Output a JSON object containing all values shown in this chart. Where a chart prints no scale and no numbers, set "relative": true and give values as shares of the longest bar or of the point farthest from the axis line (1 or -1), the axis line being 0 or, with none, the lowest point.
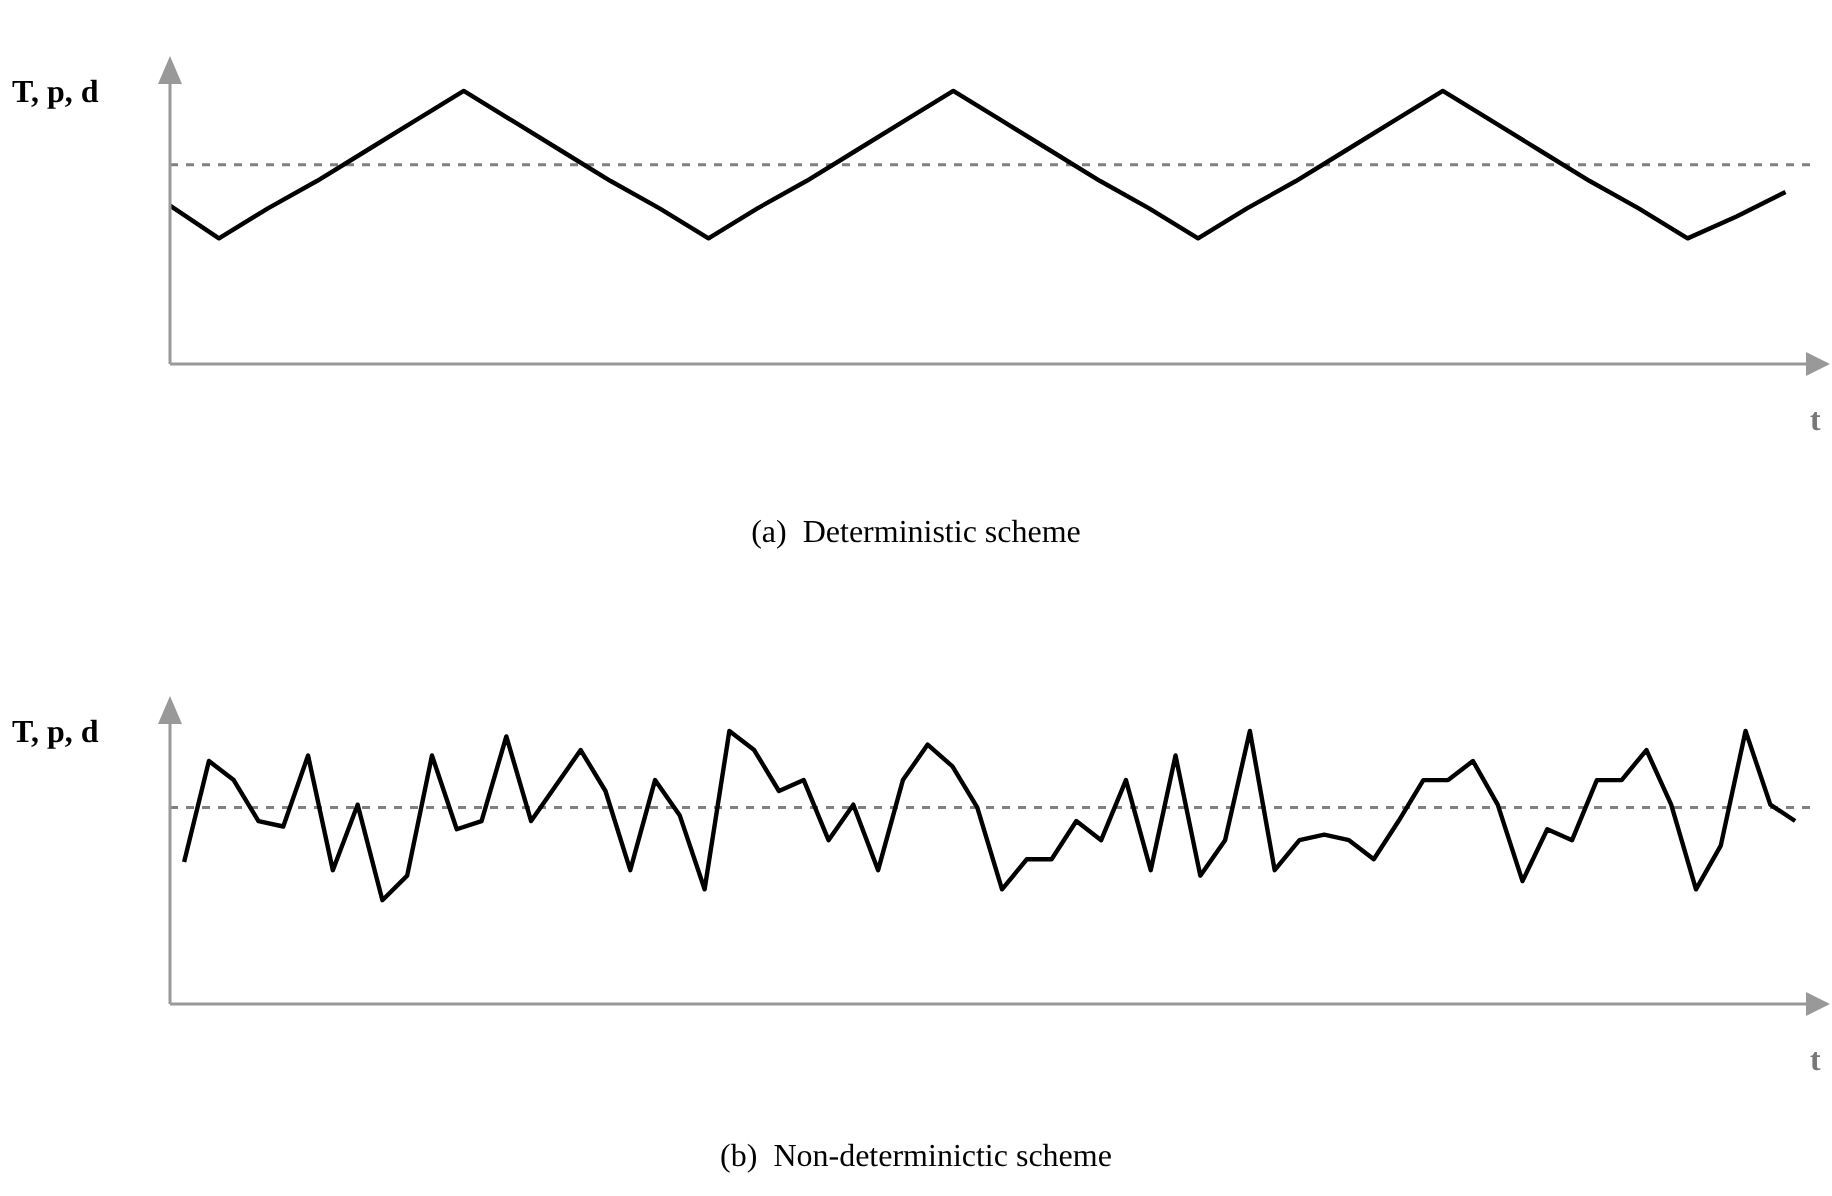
{
  "chart_data": [
    {
      "type": "line",
      "ylabel": "T, p, d",
      "xlabel": "t",
      "annotations": [
        "(a)  Deterministic scheme"
      ],
      "relative": true,
      "categories": [
        null,
        null,
        null,
        null,
        null,
        null,
        null,
        null,
        null,
        null,
        null,
        null,
        null,
        null,
        null,
        null,
        null,
        null,
        null,
        null,
        null,
        null,
        null,
        null,
        null,
        null,
        null,
        null,
        null,
        null,
        null,
        null,
        null,
        null
      ],
      "series": [
        {
          "color": "#000000",
          "values": [
            0.58,
            0.46,
            0.57,
            0.67,
            0.78,
            0.89,
            1,
            0.89,
            0.78,
            0.67,
            0.57,
            0.46,
            0.57,
            0.67,
            0.78,
            0.89,
            1,
            0.89,
            0.78,
            0.67,
            0.57,
            0.46,
            0.57,
            0.67,
            0.78,
            0.89,
            1,
            0.89,
            0.78,
            0.67,
            0.57,
            0.46,
            0.54,
            0.63
          ]
        }
      ],
      "ref_lines": [
        {
          "axis": "y",
          "value": 0.73,
          "color": "#808080",
          "line_style": "dashed"
        }
      ]
    },
    {
      "type": "line",
      "ylabel": "T, p, d",
      "xlabel": "t",
      "annotations": [
        "(b)  Non-determinictic scheme"
      ],
      "relative": true,
      "categories": [
        null,
        null,
        null,
        null,
        null,
        null,
        null,
        null,
        null,
        null,
        null,
        null,
        null,
        null,
        null,
        null,
        null,
        null,
        null,
        null,
        null,
        null,
        null,
        null,
        null,
        null,
        null,
        null,
        null,
        null,
        null,
        null,
        null,
        null,
        null,
        null,
        null,
        null,
        null,
        null,
        null,
        null,
        null,
        null,
        null,
        null,
        null,
        null,
        null,
        null,
        null,
        null,
        null,
        null,
        null,
        null,
        null,
        null,
        null,
        null,
        null,
        null,
        null,
        null,
        null,
        null
      ],
      "series": [
        {
          "color": "#000000",
          "values": [
            0.52,
            0.89,
            0.82,
            0.67,
            0.65,
            0.91,
            0.49,
            0.73,
            0.38,
            0.47,
            0.91,
            0.64,
            0.67,
            0.98,
            0.67,
            0.8,
            0.93,
            0.78,
            0.49,
            0.82,
            0.69,
            0.42,
            1,
            0.93,
            0.78,
            0.82,
            0.6,
            0.73,
            0.49,
            0.82,
            0.95,
            0.87,
            0.72,
            0.42,
            0.53,
            0.53,
            0.67,
            0.6,
            0.82,
            0.49,
            0.91,
            0.47,
            0.6,
            1,
            0.49,
            0.6,
            0.62,
            0.6,
            0.53,
            0.67,
            0.82,
            0.82,
            0.89,
            0.73,
            0.45,
            0.64,
            0.6,
            0.82,
            0.82,
            0.93,
            0.73,
            0.42,
            0.58,
            1,
            0.73,
            0.67
          ]
        }
      ],
      "ref_lines": [
        {
          "axis": "y",
          "value": 0.72,
          "color": "#808080",
          "line_style": "dashed"
        }
      ]
    }
  ]
}
